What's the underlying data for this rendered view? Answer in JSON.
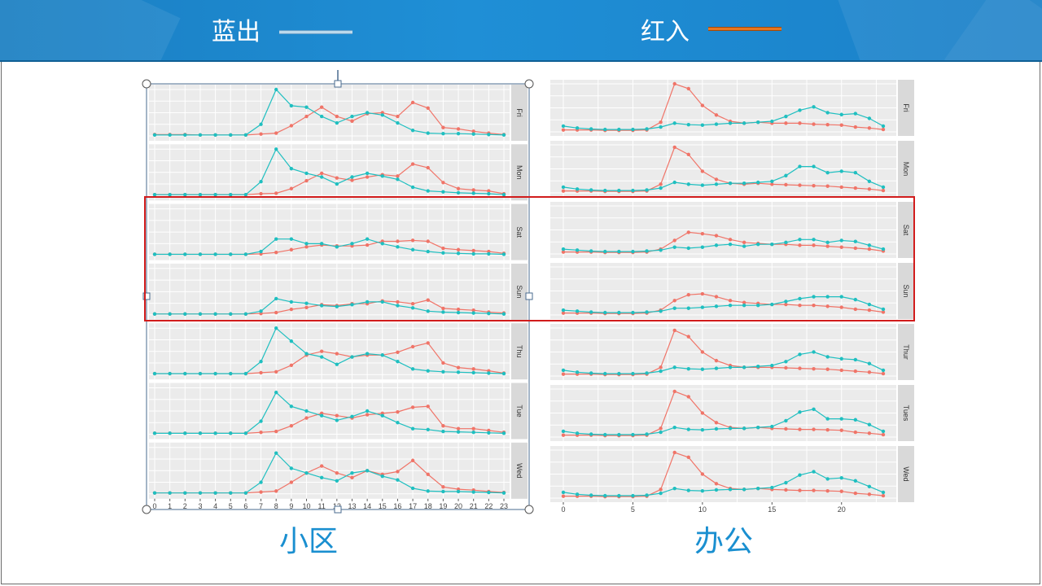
{
  "legend": {
    "blue_label": "蓝出",
    "red_label": "红入",
    "blue_color": "#bcd9ec",
    "red_color": "#e8761e"
  },
  "captions": {
    "left": "小区",
    "right": "办公"
  },
  "colors": {
    "teal": "#1fbfc0",
    "salmon": "#f07468",
    "panel_bg": "#ebebeb",
    "strip_bg": "#d9d9d9",
    "highlight": "#d11c1c",
    "selection": "#4a6b8f"
  },
  "chart_data": [
    {
      "type": "line",
      "panels": [
        "Fri",
        "Mon",
        "Sat",
        "Sun",
        "Thu",
        "Tue",
        "Wed"
      ],
      "x": [
        0,
        1,
        2,
        3,
        4,
        5,
        6,
        7,
        8,
        9,
        10,
        11,
        12,
        13,
        14,
        15,
        16,
        17,
        18,
        19,
        20,
        21,
        22,
        23
      ],
      "x_tick_labels": [
        "0",
        "1",
        "2",
        "3",
        "4",
        "5",
        "6",
        "7",
        "8",
        "9",
        "10",
        "11",
        "12",
        "13",
        "14",
        "15",
        "16",
        "17",
        "18",
        "19",
        "20",
        "21",
        "22",
        "23"
      ],
      "ylim": [
        0,
        1
      ],
      "grid": true,
      "facet_series": {
        "Fri": {
          "teal": [
            0.02,
            0.02,
            0.02,
            0.02,
            0.02,
            0.02,
            0.02,
            0.25,
            1.0,
            0.65,
            0.62,
            0.42,
            0.28,
            0.42,
            0.5,
            0.45,
            0.28,
            0.12,
            0.06,
            0.05,
            0.05,
            0.04,
            0.03,
            0.02
          ],
          "salmon": [
            0.03,
            0.03,
            0.03,
            0.02,
            0.02,
            0.02,
            0.02,
            0.04,
            0.06,
            0.22,
            0.42,
            0.62,
            0.42,
            0.32,
            0.48,
            0.5,
            0.42,
            0.72,
            0.6,
            0.18,
            0.15,
            0.1,
            0.06,
            0.03
          ]
        },
        "Mon": {
          "teal": [
            0.02,
            0.02,
            0.02,
            0.02,
            0.02,
            0.02,
            0.02,
            0.3,
            1.0,
            0.58,
            0.48,
            0.4,
            0.25,
            0.4,
            0.48,
            0.42,
            0.35,
            0.18,
            0.1,
            0.08,
            0.06,
            0.05,
            0.04,
            0.02
          ],
          "salmon": [
            0.02,
            0.02,
            0.02,
            0.02,
            0.02,
            0.02,
            0.02,
            0.04,
            0.05,
            0.15,
            0.32,
            0.48,
            0.38,
            0.33,
            0.4,
            0.45,
            0.42,
            0.68,
            0.6,
            0.28,
            0.15,
            0.12,
            0.1,
            0.04
          ]
        },
        "Sat": {
          "teal": [
            0.02,
            0.02,
            0.02,
            0.02,
            0.02,
            0.02,
            0.02,
            0.08,
            0.35,
            0.35,
            0.25,
            0.25,
            0.18,
            0.25,
            0.35,
            0.25,
            0.18,
            0.12,
            0.08,
            0.05,
            0.04,
            0.03,
            0.03,
            0.02
          ],
          "salmon": [
            0.02,
            0.02,
            0.02,
            0.02,
            0.02,
            0.02,
            0.02,
            0.03,
            0.06,
            0.12,
            0.18,
            0.22,
            0.2,
            0.2,
            0.22,
            0.3,
            0.3,
            0.32,
            0.3,
            0.15,
            0.12,
            0.1,
            0.08,
            0.04
          ]
        },
        "Sun": {
          "teal": [
            0.02,
            0.02,
            0.02,
            0.02,
            0.02,
            0.02,
            0.02,
            0.08,
            0.35,
            0.28,
            0.25,
            0.2,
            0.18,
            0.22,
            0.28,
            0.28,
            0.2,
            0.15,
            0.08,
            0.06,
            0.05,
            0.04,
            0.03,
            0.02
          ],
          "salmon": [
            0.02,
            0.02,
            0.02,
            0.02,
            0.02,
            0.02,
            0.02,
            0.03,
            0.05,
            0.12,
            0.16,
            0.22,
            0.2,
            0.24,
            0.24,
            0.3,
            0.28,
            0.24,
            0.32,
            0.14,
            0.12,
            0.1,
            0.06,
            0.04
          ]
        },
        "Thu": {
          "teal": [
            0.02,
            0.02,
            0.02,
            0.02,
            0.02,
            0.02,
            0.02,
            0.28,
            1.0,
            0.72,
            0.45,
            0.38,
            0.22,
            0.38,
            0.45,
            0.42,
            0.28,
            0.12,
            0.08,
            0.06,
            0.05,
            0.04,
            0.03,
            0.02
          ],
          "salmon": [
            0.02,
            0.02,
            0.02,
            0.02,
            0.02,
            0.02,
            0.02,
            0.04,
            0.06,
            0.2,
            0.42,
            0.5,
            0.45,
            0.38,
            0.42,
            0.42,
            0.48,
            0.6,
            0.68,
            0.25,
            0.15,
            0.12,
            0.08,
            0.03
          ]
        },
        "Tue": {
          "teal": [
            0.02,
            0.02,
            0.02,
            0.02,
            0.02,
            0.02,
            0.02,
            0.28,
            0.9,
            0.6,
            0.5,
            0.4,
            0.3,
            0.38,
            0.5,
            0.4,
            0.25,
            0.12,
            0.1,
            0.06,
            0.05,
            0.04,
            0.03,
            0.02
          ],
          "salmon": [
            0.02,
            0.02,
            0.02,
            0.02,
            0.02,
            0.02,
            0.02,
            0.04,
            0.06,
            0.18,
            0.35,
            0.45,
            0.4,
            0.35,
            0.42,
            0.45,
            0.48,
            0.58,
            0.6,
            0.18,
            0.12,
            0.12,
            0.08,
            0.04
          ]
        },
        "Wed": {
          "teal": [
            0.02,
            0.02,
            0.02,
            0.02,
            0.02,
            0.02,
            0.02,
            0.25,
            0.88,
            0.55,
            0.45,
            0.35,
            0.28,
            0.45,
            0.5,
            0.38,
            0.3,
            0.12,
            0.06,
            0.05,
            0.05,
            0.04,
            0.03,
            0.02
          ],
          "salmon": [
            0.02,
            0.02,
            0.02,
            0.02,
            0.02,
            0.02,
            0.02,
            0.04,
            0.06,
            0.25,
            0.45,
            0.6,
            0.45,
            0.35,
            0.5,
            0.42,
            0.48,
            0.72,
            0.42,
            0.15,
            0.1,
            0.08,
            0.05,
            0.03
          ]
        }
      }
    },
    {
      "type": "line",
      "panels": [
        "Fri",
        "Mon",
        "Sat",
        "Sun",
        "Thur",
        "Tues",
        "Wed"
      ],
      "x": [
        0,
        1,
        2,
        3,
        4,
        5,
        6,
        7,
        8,
        9,
        10,
        11,
        12,
        13,
        14,
        15,
        16,
        17,
        18,
        19,
        20,
        21,
        22,
        23
      ],
      "x_tick_labels": [
        "0",
        "5",
        "10",
        "15",
        "20"
      ],
      "x_tick_values": [
        0,
        5,
        10,
        15,
        20
      ],
      "ylim": [
        0,
        1
      ],
      "grid": true,
      "facet_series": {
        "Fri": {
          "teal": [
            0.12,
            0.08,
            0.06,
            0.05,
            0.05,
            0.05,
            0.06,
            0.1,
            0.18,
            0.15,
            0.14,
            0.16,
            0.18,
            0.18,
            0.2,
            0.22,
            0.32,
            0.45,
            0.52,
            0.4,
            0.36,
            0.38,
            0.28,
            0.12
          ],
          "salmon": [
            0.04,
            0.04,
            0.04,
            0.03,
            0.03,
            0.03,
            0.04,
            0.2,
            1.0,
            0.9,
            0.55,
            0.35,
            0.22,
            0.18,
            0.2,
            0.18,
            0.18,
            0.18,
            0.16,
            0.15,
            0.14,
            0.1,
            0.08,
            0.05
          ]
        },
        "Mon": {
          "teal": [
            0.12,
            0.08,
            0.06,
            0.05,
            0.05,
            0.05,
            0.06,
            0.1,
            0.22,
            0.18,
            0.16,
            0.18,
            0.2,
            0.2,
            0.22,
            0.24,
            0.36,
            0.55,
            0.55,
            0.42,
            0.45,
            0.42,
            0.24,
            0.12
          ],
          "salmon": [
            0.04,
            0.04,
            0.04,
            0.03,
            0.03,
            0.03,
            0.04,
            0.18,
            0.95,
            0.8,
            0.45,
            0.28,
            0.2,
            0.18,
            0.2,
            0.18,
            0.17,
            0.16,
            0.15,
            0.14,
            0.12,
            0.1,
            0.08,
            0.05
          ]
        },
        "Sat": {
          "teal": [
            0.1,
            0.08,
            0.06,
            0.05,
            0.05,
            0.05,
            0.06,
            0.08,
            0.14,
            0.12,
            0.14,
            0.18,
            0.2,
            0.16,
            0.2,
            0.2,
            0.24,
            0.3,
            0.3,
            0.24,
            0.28,
            0.26,
            0.18,
            0.1
          ],
          "salmon": [
            0.04,
            0.04,
            0.04,
            0.03,
            0.03,
            0.03,
            0.04,
            0.1,
            0.28,
            0.45,
            0.42,
            0.38,
            0.3,
            0.24,
            0.22,
            0.2,
            0.2,
            0.18,
            0.18,
            0.16,
            0.14,
            0.12,
            0.1,
            0.06
          ]
        },
        "Sun": {
          "teal": [
            0.1,
            0.08,
            0.06,
            0.05,
            0.05,
            0.05,
            0.06,
            0.08,
            0.14,
            0.14,
            0.16,
            0.18,
            0.2,
            0.2,
            0.2,
            0.22,
            0.28,
            0.34,
            0.38,
            0.38,
            0.38,
            0.32,
            0.22,
            0.12
          ],
          "salmon": [
            0.04,
            0.04,
            0.04,
            0.03,
            0.03,
            0.03,
            0.04,
            0.1,
            0.3,
            0.42,
            0.44,
            0.38,
            0.3,
            0.26,
            0.24,
            0.22,
            0.22,
            0.2,
            0.2,
            0.18,
            0.16,
            0.12,
            0.1,
            0.06
          ]
        },
        "Thur": {
          "teal": [
            0.12,
            0.08,
            0.06,
            0.05,
            0.05,
            0.05,
            0.06,
            0.1,
            0.18,
            0.15,
            0.14,
            0.16,
            0.18,
            0.18,
            0.2,
            0.22,
            0.3,
            0.45,
            0.5,
            0.4,
            0.36,
            0.34,
            0.26,
            0.12
          ],
          "salmon": [
            0.04,
            0.04,
            0.04,
            0.03,
            0.03,
            0.03,
            0.04,
            0.18,
            0.95,
            0.82,
            0.5,
            0.32,
            0.22,
            0.18,
            0.18,
            0.18,
            0.17,
            0.16,
            0.15,
            0.14,
            0.12,
            0.1,
            0.08,
            0.05
          ]
        },
        "Tues": {
          "teal": [
            0.12,
            0.08,
            0.06,
            0.05,
            0.05,
            0.05,
            0.06,
            0.1,
            0.2,
            0.16,
            0.15,
            0.17,
            0.18,
            0.18,
            0.2,
            0.22,
            0.34,
            0.52,
            0.58,
            0.38,
            0.38,
            0.36,
            0.26,
            0.12
          ],
          "salmon": [
            0.04,
            0.04,
            0.04,
            0.03,
            0.03,
            0.03,
            0.04,
            0.18,
            0.95,
            0.84,
            0.5,
            0.3,
            0.2,
            0.18,
            0.2,
            0.18,
            0.17,
            0.16,
            0.16,
            0.15,
            0.14,
            0.1,
            0.08,
            0.05
          ]
        },
        "Wed": {
          "teal": [
            0.12,
            0.08,
            0.06,
            0.05,
            0.05,
            0.05,
            0.06,
            0.1,
            0.2,
            0.16,
            0.15,
            0.17,
            0.18,
            0.18,
            0.2,
            0.22,
            0.32,
            0.48,
            0.55,
            0.4,
            0.42,
            0.36,
            0.24,
            0.12
          ],
          "salmon": [
            0.04,
            0.04,
            0.04,
            0.03,
            0.03,
            0.03,
            0.04,
            0.18,
            0.95,
            0.85,
            0.5,
            0.3,
            0.2,
            0.18,
            0.2,
            0.18,
            0.17,
            0.16,
            0.16,
            0.15,
            0.14,
            0.1,
            0.08,
            0.05
          ]
        }
      }
    }
  ]
}
